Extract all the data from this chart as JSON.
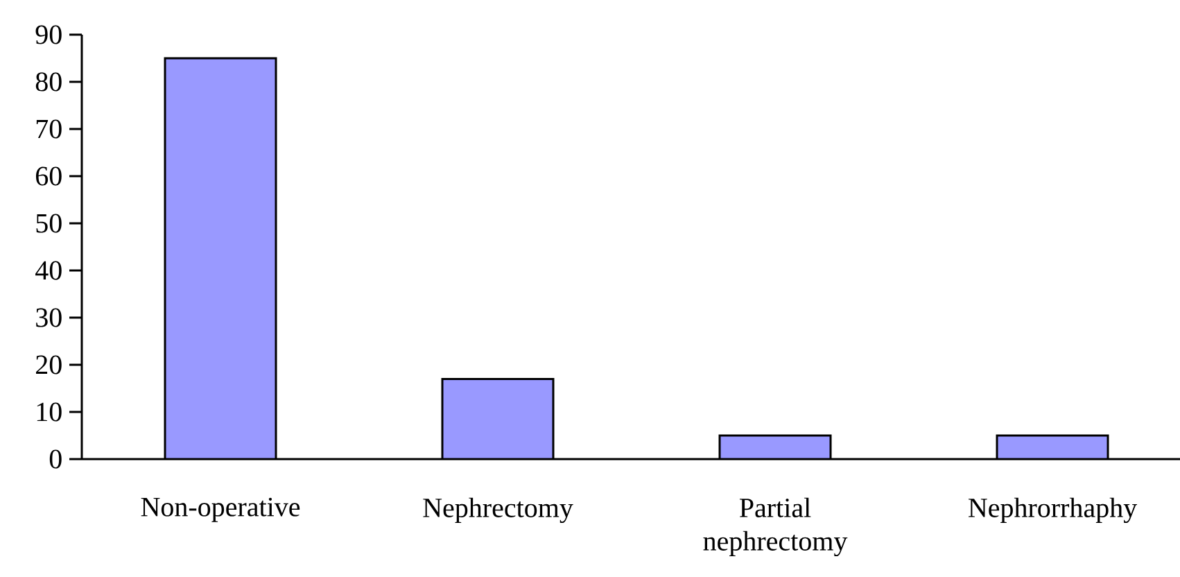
{
  "chart_data": {
    "type": "bar",
    "categories": [
      "Non-operative",
      "Nephrectomy",
      "Partial nephrectomy",
      "Nephrorrhaphy"
    ],
    "values": [
      85,
      17,
      5,
      5
    ],
    "color": "#9999ff",
    "ylim": [
      0,
      90
    ],
    "yticks": [
      0,
      10,
      20,
      30,
      40,
      50,
      60,
      70,
      80,
      90
    ],
    "grid": false
  }
}
